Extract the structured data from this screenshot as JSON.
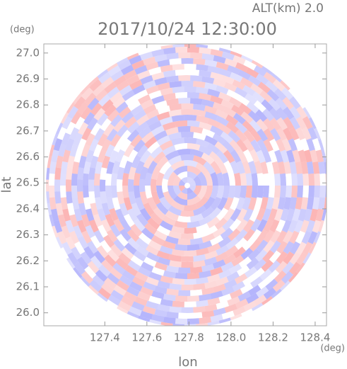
{
  "chart_data": {
    "type": "radar_image",
    "title": "2017/10/24 12:30:00",
    "annotation": "ALT(km) 2.0",
    "x_unit": "(deg)",
    "y_unit": "(deg)",
    "xlabel": "lon",
    "ylabel": "lat",
    "xlim": [
      127.11,
      128.454
    ],
    "ylim": [
      25.95,
      27.035
    ],
    "xticks": [
      127.4,
      127.6,
      127.8,
      {
        "value": 128,
        "label": "128.0"
      },
      128.2,
      128.4
    ],
    "yticks": [
      {
        "value": 26,
        "label": "26.0"
      },
      26.1,
      26.2,
      26.3,
      26.4,
      26.5,
      26.6,
      26.7,
      26.8,
      26.9,
      {
        "value": 27,
        "label": "27.0"
      }
    ]
  }
}
